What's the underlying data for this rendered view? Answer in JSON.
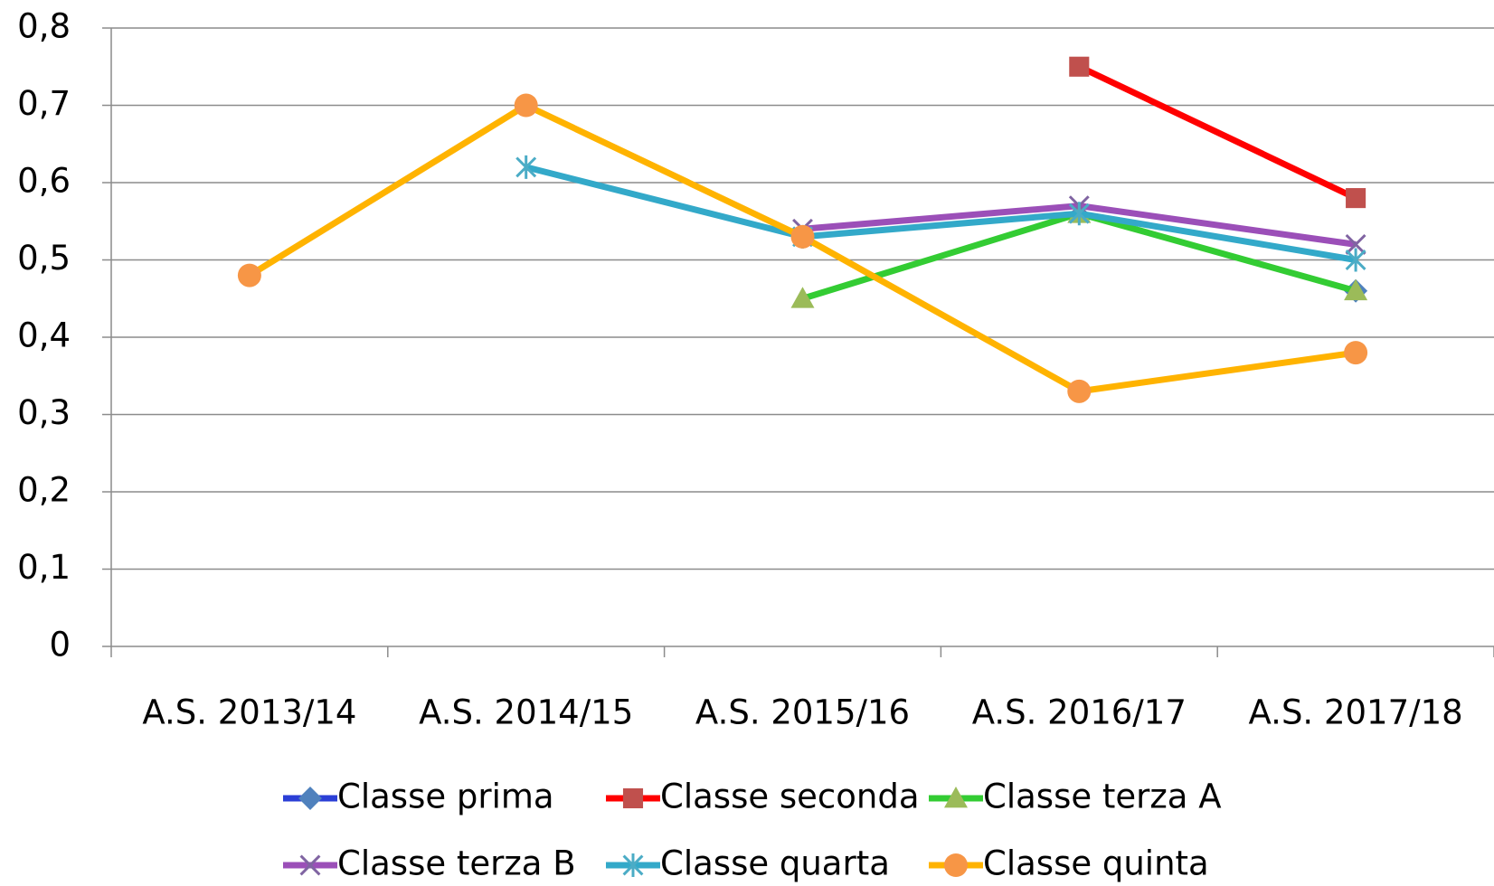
{
  "chart_data": {
    "type": "line",
    "categories": [
      "A.S. 2013/14",
      "A.S. 2014/15",
      "A.S. 2015/16",
      "A.S. 2016/17",
      "A.S. 2017/18"
    ],
    "series": [
      {
        "name": "Classe prima",
        "color": "#2b3fd6",
        "marker_color": "#4f81bd",
        "marker": "diamond",
        "values": [
          null,
          null,
          null,
          null,
          0.46
        ]
      },
      {
        "name": "Classe seconda",
        "color": "#ff0000",
        "marker_color": "#c0504d",
        "marker": "square",
        "values": [
          null,
          null,
          null,
          0.75,
          0.58
        ]
      },
      {
        "name": "Classe terza A",
        "color": "#33cc33",
        "marker_color": "#9bbb59",
        "marker": "triangle",
        "values": [
          null,
          null,
          0.45,
          0.56,
          0.46
        ]
      },
      {
        "name": "Classe terza B",
        "color": "#9b4fb8",
        "marker_color": "#8064a2",
        "marker": "x",
        "values": [
          null,
          null,
          0.54,
          0.57,
          0.52
        ]
      },
      {
        "name": "Classe quarta",
        "color": "#33a9c9",
        "marker_color": "#4bacc6",
        "marker": "star",
        "values": [
          null,
          0.62,
          0.53,
          0.56,
          0.5
        ]
      },
      {
        "name": "Classe quinta",
        "color": "#ffb300",
        "marker_color": "#f79646",
        "marker": "circle",
        "values": [
          0.48,
          0.7,
          0.53,
          0.33,
          0.38
        ]
      }
    ],
    "ylim": [
      0,
      0.8
    ],
    "yticks": [
      0,
      {
        "value": 0.1,
        "label": "0,1"
      },
      {
        "value": 0.2,
        "label": "0,2"
      },
      {
        "value": 0.3,
        "label": "0,3"
      },
      {
        "value": 0.4,
        "label": "0,4"
      },
      {
        "value": 0.5,
        "label": "0,5"
      },
      {
        "value": 0.6,
        "label": "0,6"
      },
      {
        "value": 0.7,
        "label": "0,7"
      },
      {
        "value": 0.8,
        "label": "0,8"
      }
    ],
    "grid": true
  }
}
